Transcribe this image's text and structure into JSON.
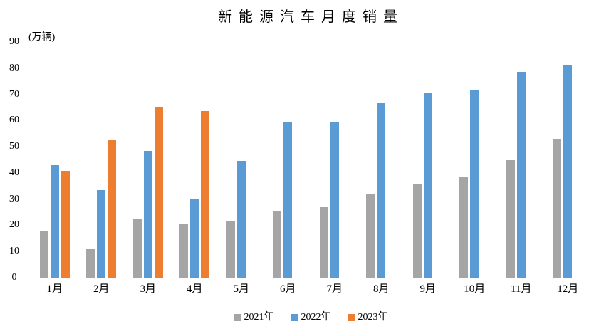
{
  "title": "新能源汽车月度销量",
  "unit_label": "(万辆)",
  "chart_data": {
    "type": "bar",
    "categories": [
      "1月",
      "2月",
      "3月",
      "4月",
      "5月",
      "6月",
      "7月",
      "8月",
      "9月",
      "10月",
      "11月",
      "12月"
    ],
    "series": [
      {
        "name": "2021年",
        "color": "#A5A5A5",
        "values": [
          17.9,
          11.0,
          22.6,
          20.6,
          21.7,
          25.6,
          27.1,
          32.1,
          35.7,
          38.3,
          45.0,
          53.1
        ]
      },
      {
        "name": "2022年",
        "color": "#5B9BD5",
        "values": [
          43.1,
          33.4,
          48.4,
          29.9,
          44.7,
          59.6,
          59.3,
          66.6,
          70.8,
          71.4,
          78.6,
          81.4
        ]
      },
      {
        "name": "2023年",
        "color": "#ED7D31",
        "values": [
          40.8,
          52.5,
          65.3,
          63.6,
          null,
          null,
          null,
          null,
          null,
          null,
          null,
          null
        ]
      }
    ],
    "title": "新能源汽车月度销量",
    "xlabel": "",
    "ylabel": "(万辆)",
    "ylim": [
      0,
      90
    ],
    "ytick_step": 10,
    "grid": false,
    "legend_position": "bottom",
    "axis_color": "#000000",
    "background_color": "#FFFFFF"
  }
}
